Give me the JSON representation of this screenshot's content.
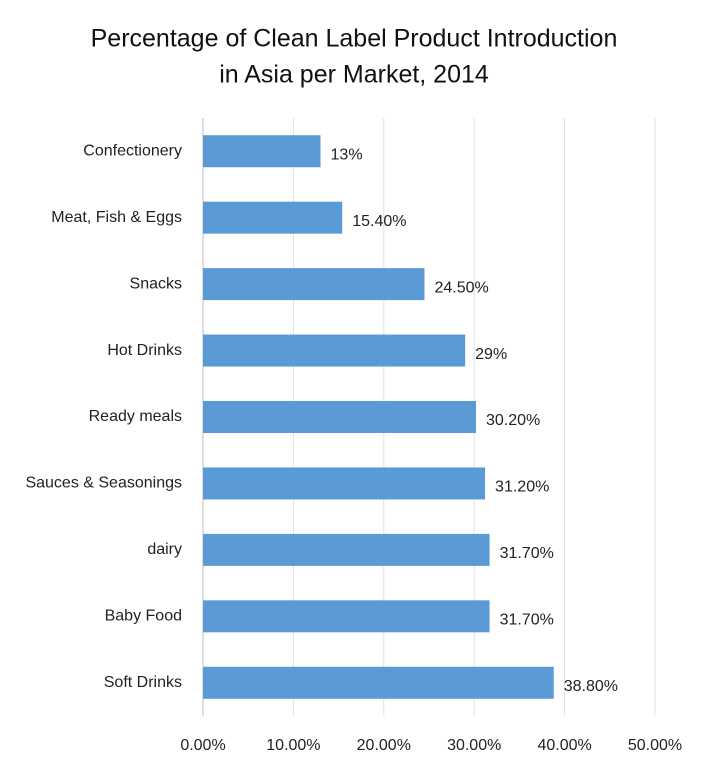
{
  "chart_data": {
    "type": "hbar",
    "title": [
      "Percentage of Clean Label Product Introduction",
      "in Asia per Market, 2014"
    ],
    "categories": [
      "Confectionery",
      "Meat, Fish & Eggs",
      "Snacks",
      "Hot Drinks",
      "Ready meals",
      "Sauces & Seasonings",
      "dairy",
      "Baby Food",
      "Soft Drinks"
    ],
    "values": [
      13,
      15.4,
      24.5,
      29,
      30.2,
      31.2,
      31.7,
      31.7,
      38.8
    ],
    "value_labels": [
      "13%",
      "15.40%",
      "24.50%",
      "29%",
      "30.20%",
      "31.20%",
      "31.70%",
      "31.70%",
      "38.80%"
    ],
    "color": "#5b9bd5",
    "xlim": [
      0,
      50
    ],
    "xticks": [
      {
        "value": 0,
        "label": "0.00%"
      },
      {
        "value": 10,
        "label": "10.00%"
      },
      {
        "value": 20,
        "label": "20.00%"
      },
      {
        "value": 30,
        "label": "30.00%"
      },
      {
        "value": 40,
        "label": "40.00%"
      },
      {
        "value": 50,
        "label": "50.00%"
      }
    ],
    "grid": true
  }
}
